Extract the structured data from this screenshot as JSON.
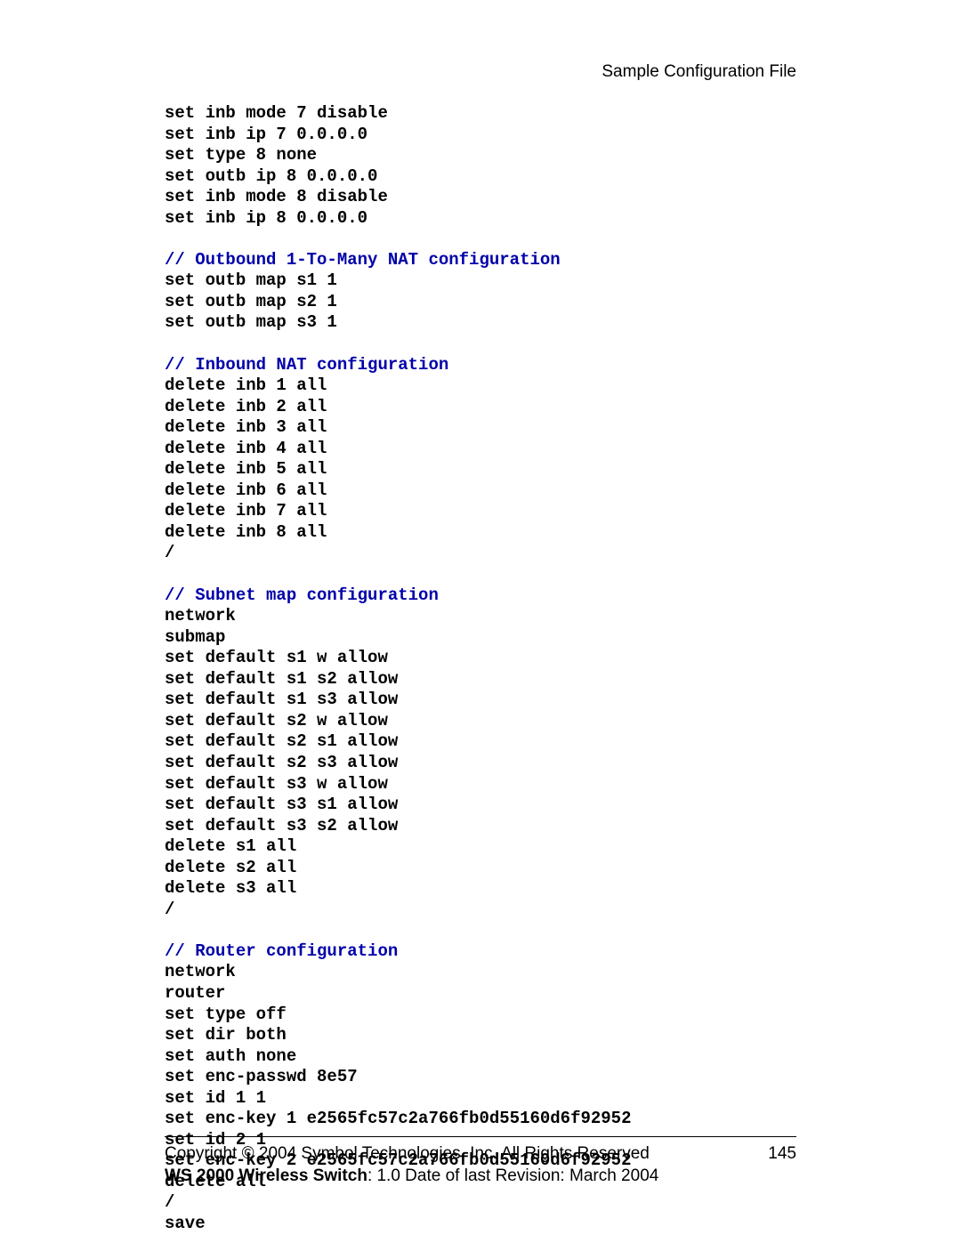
{
  "header": {
    "title": "Sample Configuration File"
  },
  "colors": {
    "comment": "#0000aa",
    "code": "#000000",
    "background": "#ffffff",
    "rule": "#000000"
  },
  "typography": {
    "code_font": "Courier New",
    "code_fontsize": 19,
    "code_fontweight": "bold",
    "body_font": "Arial",
    "body_fontsize": 19
  },
  "config": {
    "lines": [
      {
        "type": "code",
        "text": "set inb mode 7 disable"
      },
      {
        "type": "code",
        "text": "set inb ip 7 0.0.0.0"
      },
      {
        "type": "code",
        "text": "set type 8 none"
      },
      {
        "type": "code",
        "text": "set outb ip 8 0.0.0.0"
      },
      {
        "type": "code",
        "text": "set inb mode 8 disable"
      },
      {
        "type": "code",
        "text": "set inb ip 8 0.0.0.0"
      },
      {
        "type": "blank",
        "text": ""
      },
      {
        "type": "comment",
        "text": "// Outbound 1-To-Many NAT configuration"
      },
      {
        "type": "code",
        "text": "set outb map s1 1"
      },
      {
        "type": "code",
        "text": "set outb map s2 1"
      },
      {
        "type": "code",
        "text": "set outb map s3 1"
      },
      {
        "type": "blank",
        "text": ""
      },
      {
        "type": "comment",
        "text": "// Inbound NAT configuration"
      },
      {
        "type": "code",
        "text": "delete inb 1 all"
      },
      {
        "type": "code",
        "text": "delete inb 2 all"
      },
      {
        "type": "code",
        "text": "delete inb 3 all"
      },
      {
        "type": "code",
        "text": "delete inb 4 all"
      },
      {
        "type": "code",
        "text": "delete inb 5 all"
      },
      {
        "type": "code",
        "text": "delete inb 6 all"
      },
      {
        "type": "code",
        "text": "delete inb 7 all"
      },
      {
        "type": "code",
        "text": "delete inb 8 all"
      },
      {
        "type": "code",
        "text": "/"
      },
      {
        "type": "blank",
        "text": ""
      },
      {
        "type": "comment",
        "text": "// Subnet map configuration"
      },
      {
        "type": "code",
        "text": "network"
      },
      {
        "type": "code",
        "text": "submap"
      },
      {
        "type": "code",
        "text": "set default s1 w allow"
      },
      {
        "type": "code",
        "text": "set default s1 s2 allow"
      },
      {
        "type": "code",
        "text": "set default s1 s3 allow"
      },
      {
        "type": "code",
        "text": "set default s2 w allow"
      },
      {
        "type": "code",
        "text": "set default s2 s1 allow"
      },
      {
        "type": "code",
        "text": "set default s2 s3 allow"
      },
      {
        "type": "code",
        "text": "set default s3 w allow"
      },
      {
        "type": "code",
        "text": "set default s3 s1 allow"
      },
      {
        "type": "code",
        "text": "set default s3 s2 allow"
      },
      {
        "type": "code",
        "text": "delete s1 all"
      },
      {
        "type": "code",
        "text": "delete s2 all"
      },
      {
        "type": "code",
        "text": "delete s3 all"
      },
      {
        "type": "code",
        "text": "/"
      },
      {
        "type": "blank",
        "text": ""
      },
      {
        "type": "comment",
        "text": "// Router configuration"
      },
      {
        "type": "code",
        "text": "network"
      },
      {
        "type": "code",
        "text": "router"
      },
      {
        "type": "code",
        "text": "set type off"
      },
      {
        "type": "code",
        "text": "set dir both"
      },
      {
        "type": "code",
        "text": "set auth none"
      },
      {
        "type": "code",
        "text": "set enc-passwd 8e57"
      },
      {
        "type": "code",
        "text": "set id 1 1"
      },
      {
        "type": "code",
        "text": "set enc-key 1 e2565fc57c2a766fb0d55160d6f92952"
      },
      {
        "type": "code",
        "text": "set id 2 1"
      },
      {
        "type": "code",
        "text": "set enc-key 2 e2565fc57c2a766fb0d55160d6f92952"
      },
      {
        "type": "code",
        "text": "delete all"
      },
      {
        "type": "code",
        "text": "/"
      },
      {
        "type": "code",
        "text": "save"
      }
    ]
  },
  "footer": {
    "copyright": "Copyright © 2004 Symbol Technologies, Inc. All Rights Reserved",
    "product_bold": "WS 2000 Wireless Switch",
    "product_rest": ": 1.0  Date of last Revision: March 2004",
    "page_number": "145"
  }
}
